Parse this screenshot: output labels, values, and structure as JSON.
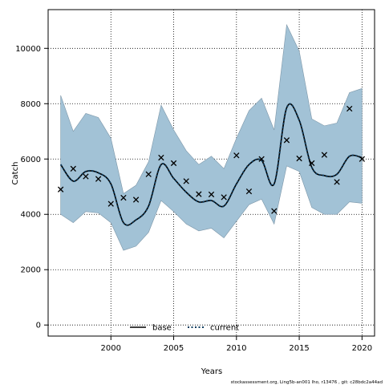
{
  "chart_data": {
    "type": "line",
    "title": "",
    "xlabel": "Years",
    "ylabel": "Catch",
    "xlim": [
      1995,
      2021
    ],
    "ylim": [
      -400,
      11400
    ],
    "x_ticks": [
      2000,
      2005,
      2010,
      2015,
      2020
    ],
    "y_ticks": [
      0,
      2000,
      4000,
      6000,
      8000,
      10000
    ],
    "grid": true,
    "grid_style": "dotted",
    "legend_position": "bottom-center",
    "legend": [
      {
        "label": "base",
        "style": "solid",
        "color": "#000000"
      },
      {
        "label": "current",
        "style": "dotted",
        "color": "#1f5f8b"
      }
    ],
    "x": [
      1996,
      1997,
      1998,
      1999,
      2000,
      2001,
      2002,
      2003,
      2004,
      2005,
      2006,
      2007,
      2008,
      2009,
      2010,
      2011,
      2012,
      2013,
      2014,
      2015,
      2016,
      2017,
      2018,
      2019,
      2020
    ],
    "observed": [
      4900,
      5650,
      5370,
      5280,
      4380,
      4600,
      4530,
      5450,
      6050,
      5850,
      5200,
      4730,
      4720,
      4620,
      6130,
      4830,
      6000,
      4120,
      6680,
      6020,
      5850,
      6150,
      5170,
      7820,
      6000
    ],
    "series": [
      {
        "name": "base",
        "values": [
          5800,
          5200,
          5550,
          5500,
          5100,
          3700,
          3800,
          4300,
          5800,
          5300,
          4800,
          4450,
          4500,
          4300,
          5100,
          5800,
          5950,
          5100,
          7850,
          7400,
          5700,
          5400,
          5450,
          6100,
          6050
        ]
      },
      {
        "name": "current",
        "values": [
          5800,
          5200,
          5550,
          5500,
          5100,
          3700,
          3800,
          4300,
          5800,
          5300,
          4800,
          4450,
          4500,
          4300,
          5100,
          5800,
          5950,
          5100,
          7850,
          7400,
          5700,
          5400,
          5450,
          6100,
          6050
        ]
      }
    ],
    "band_upper": [
      8300,
      7000,
      7650,
      7500,
      6750,
      4750,
      5050,
      5900,
      7950,
      7050,
      6300,
      5800,
      6100,
      5650,
      6750,
      7750,
      8200,
      7050,
      10850,
      9900,
      7450,
      7200,
      7300,
      8400,
      8550
    ],
    "band_lower": [
      4000,
      3700,
      4100,
      4050,
      3700,
      2700,
      2850,
      3350,
      4500,
      4100,
      3650,
      3400,
      3500,
      3150,
      3750,
      4350,
      4550,
      3650,
      5750,
      5550,
      4250,
      4000,
      4000,
      4450,
      4400
    ],
    "colors": {
      "band_fill": "#a2c2d6",
      "band_stroke": "#7c96a8",
      "current_line": "#0e3d5f",
      "base_line": "#000000",
      "points": "#000000"
    }
  },
  "footer": "stockassessment.org,  Ling5b-an001  lho,  r13476 ,  git:  c28bdc2a44ad"
}
